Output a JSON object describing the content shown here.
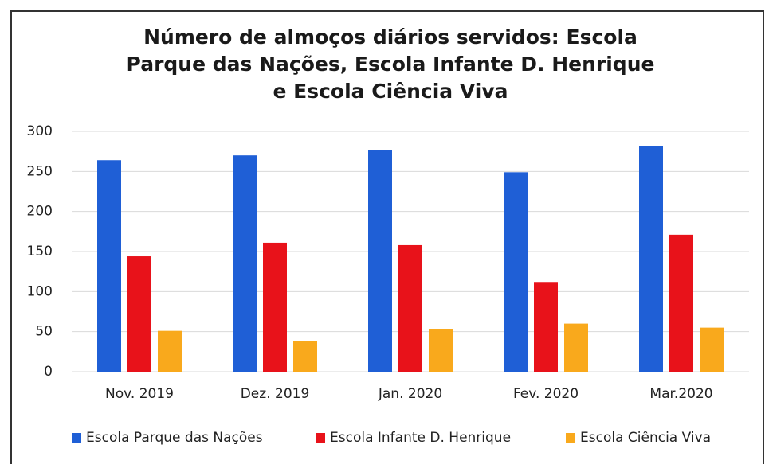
{
  "chart_data": {
    "type": "bar",
    "title": "Número de almoços diários servidos: Escola Parque das Nações, Escola Infante D. Henrique e Escola Ciência Viva",
    "categories": [
      "Nov. 2019",
      "Dez. 2019",
      "Jan. 2020",
      "Fev. 2020",
      "Mar.2020"
    ],
    "series": [
      {
        "name": "Escola Parque das Nações",
        "color": "#1f5fd6",
        "values": [
          264,
          270,
          277,
          249,
          282
        ]
      },
      {
        "name": "Escola Infante D. Henrique",
        "color": "#e8121a",
        "values": [
          144,
          161,
          158,
          112,
          171
        ]
      },
      {
        "name": "Escola Ciência Viva",
        "color": "#f9a91c",
        "values": [
          51,
          38,
          53,
          60,
          55
        ]
      }
    ],
    "ylim": [
      0,
      300
    ],
    "yticks": [
      0,
      50,
      100,
      150,
      200,
      250,
      300
    ],
    "grid": true,
    "legend": "bottom"
  }
}
